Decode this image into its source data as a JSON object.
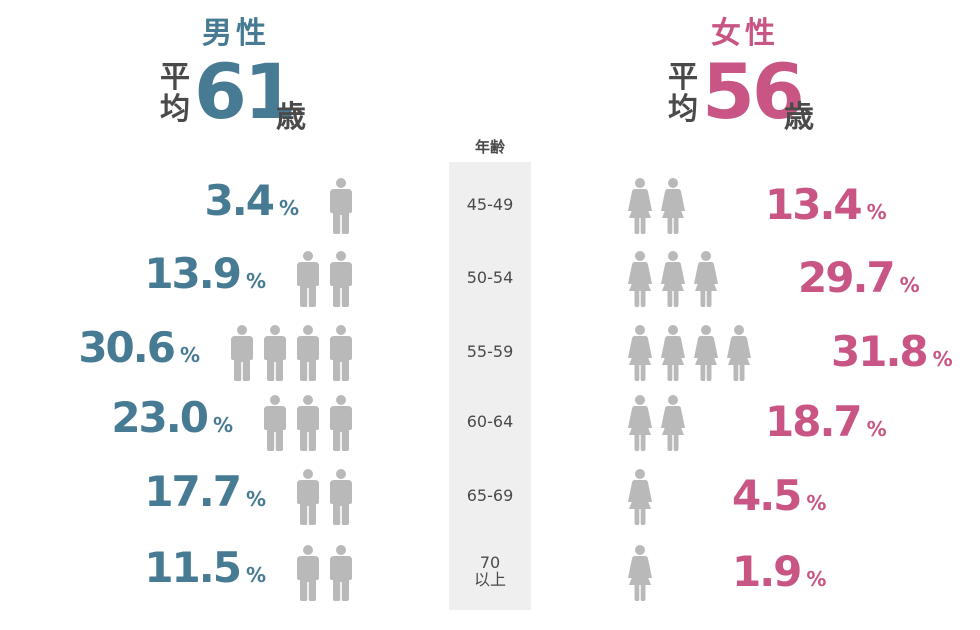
{
  "male": {
    "title": "男性",
    "avg_label": [
      "平",
      "均"
    ],
    "avg_value": "61",
    "avg_unit": "歳"
  },
  "female": {
    "title": "女性",
    "avg_label": [
      "平",
      "均"
    ],
    "avg_value": "56",
    "avg_unit": "歳"
  },
  "axis": {
    "header": "年齢"
  },
  "percent_sign": "%",
  "colors": {
    "male": "#477a93",
    "female": "#c95584",
    "neutral": "#b9b9b9",
    "band": "#efefef",
    "text": "#4a4a4a"
  },
  "chart_data": {
    "type": "pictograph",
    "title": "",
    "xlabel": "",
    "ylabel": "年齢",
    "categories": [
      "45-49",
      "50-54",
      "55-59",
      "60-64",
      "65-69",
      "70 以上"
    ],
    "category_lines": [
      [
        "45-49"
      ],
      [
        "50-54"
      ],
      [
        "55-59"
      ],
      [
        "60-64"
      ],
      [
        "65-69"
      ],
      [
        "70",
        "以上"
      ]
    ],
    "icon_unit_percent": 10,
    "series": [
      {
        "name": "男性",
        "values": [
          3.4,
          13.9,
          30.6,
          23.0,
          17.7,
          11.5
        ],
        "labels": [
          "3.4",
          "13.9",
          "30.6",
          "23.0",
          "17.7",
          "11.5"
        ]
      },
      {
        "name": "女性",
        "values": [
          13.4,
          29.7,
          31.8,
          18.7,
          4.5,
          1.9
        ],
        "labels": [
          "13.4",
          "29.7",
          "31.8",
          "18.7",
          "4.5",
          "1.9"
        ]
      }
    ]
  }
}
